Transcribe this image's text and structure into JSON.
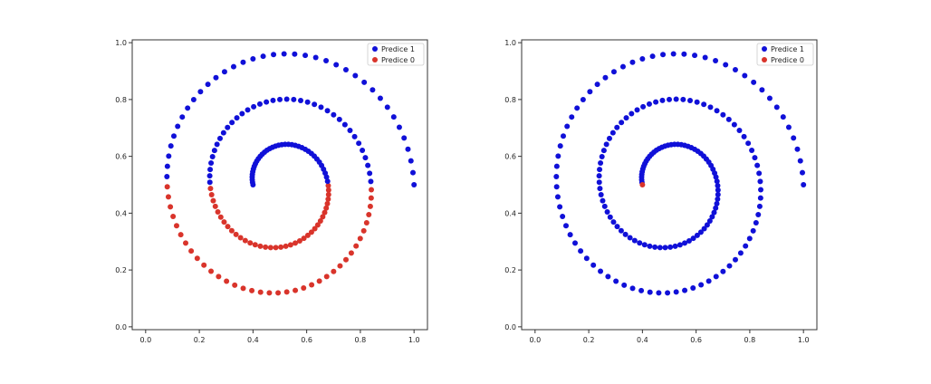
{
  "colors": {
    "predice_1": "#1010d8",
    "predice_0": "#d9342b",
    "axis": "#333333",
    "legend_border": "#cccccc"
  },
  "chart_data": [
    {
      "type": "scatter",
      "title": "",
      "xlabel": "",
      "ylabel": "",
      "xlim": [
        -0.05,
        1.05
      ],
      "ylim": [
        -0.01,
        1.01
      ],
      "xticks": [
        "0.0",
        "0.2",
        "0.4",
        "0.6",
        "0.8",
        "1.0"
      ],
      "yticks": [
        "0.0",
        "0.2",
        "0.4",
        "0.6",
        "0.8",
        "1.0"
      ],
      "grid": false,
      "legend_position": "top-right",
      "spiral": {
        "n_points": 185,
        "r_outer": 0.5,
        "r_inner": 0.1,
        "turns": 2.5,
        "start_angle_deg": 0,
        "orientation": "ccw"
      },
      "series": [
        {
          "name": "Predice 1",
          "color_key": "predice_1",
          "rule": "y_above_0.5_first_points"
        },
        {
          "name": "Predice 0",
          "color_key": "predice_0",
          "rule": "remaining_points"
        }
      ]
    },
    {
      "type": "scatter",
      "title": "",
      "xlabel": "",
      "ylabel": "",
      "xlim": [
        -0.05,
        1.05
      ],
      "ylim": [
        -0.01,
        1.01
      ],
      "xticks": [
        "0.0",
        "0.2",
        "0.4",
        "0.6",
        "0.8",
        "1.0"
      ],
      "yticks": [
        "0.0",
        "0.2",
        "0.4",
        "0.6",
        "0.8",
        "1.0"
      ],
      "grid": false,
      "legend_position": "top-right",
      "spiral": {
        "n_points": 185,
        "r_outer": 0.5,
        "r_inner": 0.1,
        "turns": 2.5,
        "start_angle_deg": 0,
        "orientation": "ccw"
      },
      "series": [
        {
          "name": "Predice 1",
          "color_key": "predice_1",
          "rule": "alternating_spiral_arms"
        },
        {
          "name": "Predice 0",
          "color_key": "predice_0",
          "rule": "alternating_spiral_arms_complement"
        }
      ]
    }
  ]
}
